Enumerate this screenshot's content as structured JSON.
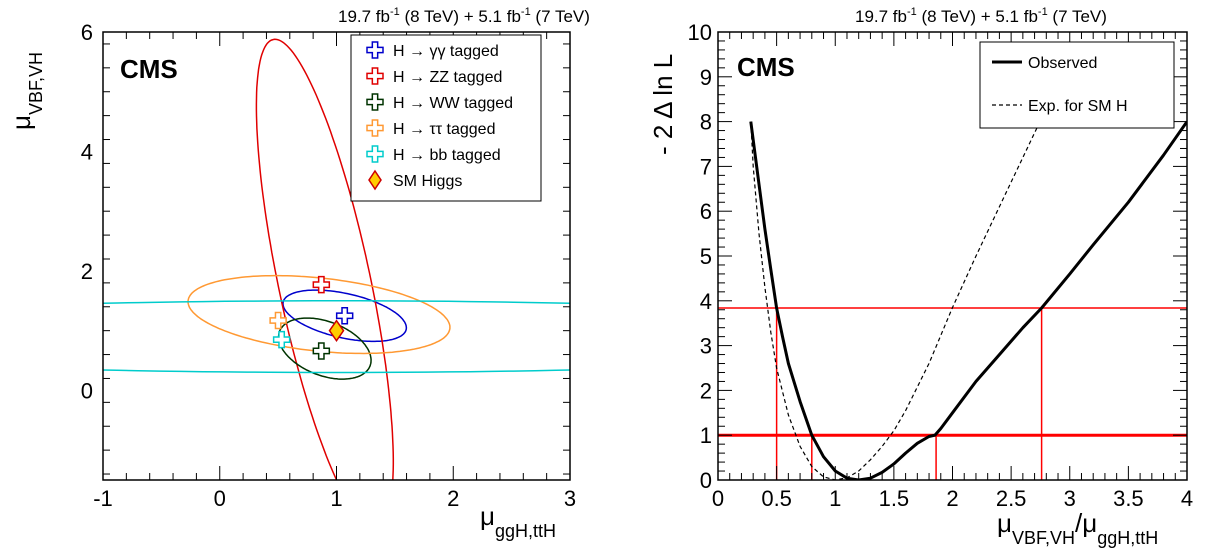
{
  "chart_data": [
    {
      "type": "contour",
      "header": {
        "lumi8": "19.7 fb",
        "sup8": "-1",
        "energy8": " (8 TeV) +  5.1 fb",
        "sup7": "-1",
        "energy7": " (7 TeV)"
      },
      "cms_label": "CMS",
      "xlabel": {
        "sym": "μ",
        "sub": "ggH,ttH"
      },
      "ylabel": {
        "sym": "μ",
        "sub": "VBF,VH"
      },
      "xlim": [
        -1,
        3
      ],
      "ylim": [
        -1.5,
        6
      ],
      "x_ticks": [
        -1,
        0,
        1,
        2,
        3
      ],
      "y_ticks": [
        0,
        2,
        4,
        6
      ],
      "series": [
        {
          "name": "H → γγ tagged",
          "color": "#0000cc",
          "best_fit": [
            1.07,
            1.25
          ],
          "ellipse": {
            "center": [
              1.07,
              1.25
            ],
            "a": 0.59,
            "b": 0.34,
            "angle": -33
          }
        },
        {
          "name": "H → ZZ tagged",
          "color": "#e00000",
          "best_fit": [
            0.87,
            1.77
          ],
          "ellipse": {
            "center": [
              0.9,
              1.78
            ],
            "a": 4.12,
            "b": 0.4,
            "angle": -84
          }
        },
        {
          "name": "H → WW tagged",
          "color": "#003300",
          "best_fit": [
            0.87,
            0.66
          ],
          "ellipse": {
            "center": [
              0.9,
              0.7
            ],
            "a": 0.55,
            "b": 0.34,
            "angle": 118
          }
        },
        {
          "name": "H → ττ tagged",
          "color": "#ff9933",
          "best_fit": [
            0.5,
            1.17
          ],
          "ellipse": {
            "center": [
              0.85,
              1.27
            ],
            "a": 1.15,
            "b": 0.6,
            "angle": -15
          }
        },
        {
          "name": "H → bb tagged",
          "color": "#00cccc",
          "best_fit": [
            0.53,
            0.85
          ],
          "ellipse": {
            "center": [
              1.0,
              0.9
            ],
            "a": 5.5,
            "b": 0.6,
            "angle": 0
          }
        }
      ],
      "sm_higgs": {
        "name": "SM Higgs",
        "point": [
          1,
          1
        ],
        "color": "#ffcc00",
        "edge": "#cc0000"
      }
    },
    {
      "type": "line",
      "header": {
        "lumi8": "19.7 fb",
        "sup8": "-1",
        "energy8": " (8 TeV) +  5.1 fb",
        "sup7": "-1",
        "energy7": " (7 TeV)"
      },
      "cms_label": "CMS",
      "xlabel": {
        "sym1": "μ",
        "sub1": "VBF,VH",
        "slash": "/",
        "sym2": "μ",
        "sub2": "ggH,ttH"
      },
      "ylabel": "- 2 Δ ln L",
      "xlim": [
        0,
        4
      ],
      "ylim": [
        0,
        10
      ],
      "x_ticks": [
        "0",
        "0.5",
        "1",
        "1.5",
        "2",
        "2.5",
        "3",
        "3.5",
        "4"
      ],
      "y_ticks": [
        "0",
        "1",
        "2",
        "3",
        "4",
        "5",
        "6",
        "7",
        "8",
        "9",
        "10"
      ],
      "series": [
        {
          "name": "Observed",
          "style": "solid",
          "x": [
            0.28,
            0.35,
            0.4,
            0.45,
            0.5,
            0.55,
            0.6,
            0.7,
            0.8,
            0.9,
            1.0,
            1.1,
            1.2,
            1.3,
            1.4,
            1.5,
            1.6,
            1.7,
            1.8,
            1.85,
            1.9,
            2.0,
            2.2,
            2.4,
            2.6,
            2.76,
            3.0,
            3.2,
            3.5,
            3.8,
            4.0
          ],
          "y": [
            8.0,
            6.6,
            5.6,
            4.7,
            3.84,
            3.2,
            2.6,
            1.75,
            1.0,
            0.52,
            0.2,
            0.04,
            0.0,
            0.04,
            0.17,
            0.36,
            0.6,
            0.82,
            0.97,
            1.0,
            1.15,
            1.5,
            2.2,
            2.8,
            3.4,
            3.84,
            4.6,
            5.25,
            6.2,
            7.25,
            8.0
          ]
        },
        {
          "name": "Exp. for SM H",
          "style": "dashed",
          "x": [
            0.28,
            0.3,
            0.35,
            0.4,
            0.45,
            0.5,
            0.6,
            0.7,
            0.8,
            0.9,
            1.0,
            1.1,
            1.2,
            1.3,
            1.4,
            1.5,
            1.6,
            1.8,
            2.0,
            2.2,
            2.4,
            2.6,
            2.8,
            2.9
          ],
          "y": [
            8.0,
            7.0,
            5.5,
            4.3,
            3.3,
            2.5,
            1.45,
            0.75,
            0.3,
            0.07,
            0.0,
            0.05,
            0.2,
            0.45,
            0.75,
            1.1,
            1.55,
            2.6,
            3.85,
            5.0,
            6.1,
            7.2,
            8.3,
            8.9
          ]
        }
      ],
      "ref_lines": {
        "y": [
          1,
          3.84
        ],
        "x_at_1": [
          0.8,
          1.86
        ],
        "x_at_384": [
          0.5,
          2.76
        ],
        "color": "#ff0000"
      },
      "legend": {
        "placement": "top-right"
      }
    }
  ]
}
